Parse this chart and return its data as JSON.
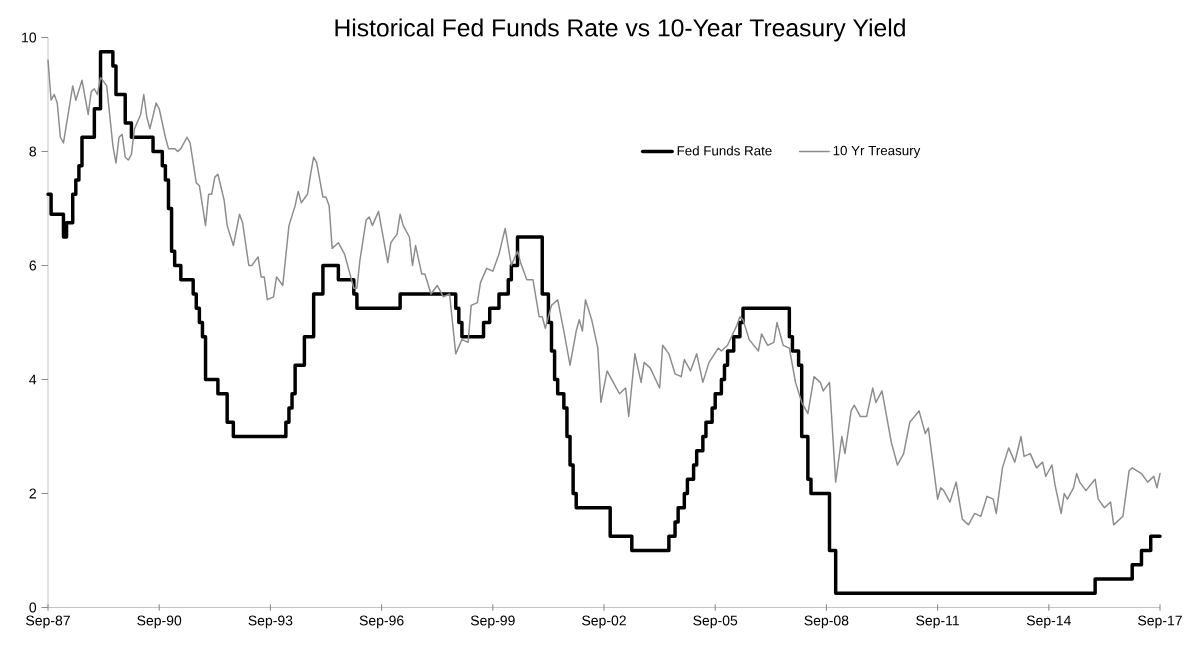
{
  "chart_data": {
    "type": "line",
    "title": "Historical Fed Funds Rate vs 10-Year Treasury Yield",
    "xlim": [
      "1987-09",
      "2017-09"
    ],
    "xticks": [
      {
        "value": "1987-09",
        "label": "Sep-87"
      },
      {
        "value": "1990-09",
        "label": "Sep-90"
      },
      {
        "value": "1993-09",
        "label": "Sep-93"
      },
      {
        "value": "1996-09",
        "label": "Sep-96"
      },
      {
        "value": "1999-09",
        "label": "Sep-99"
      },
      {
        "value": "2002-09",
        "label": "Sep-02"
      },
      {
        "value": "2005-09",
        "label": "Sep-05"
      },
      {
        "value": "2008-09",
        "label": "Sep-08"
      },
      {
        "value": "2011-09",
        "label": "Sep-11"
      },
      {
        "value": "2014-09",
        "label": "Sep-14"
      },
      {
        "value": "2017-09",
        "label": "Sep-17"
      }
    ],
    "ylim": [
      0,
      10
    ],
    "yticks": [
      0,
      2,
      4,
      6,
      8,
      10
    ],
    "legend": "top right",
    "series": [
      {
        "name": "Fed Funds Rate",
        "type": "step",
        "color": "#000000",
        "x": [
          "1987-09",
          "1987-10",
          "1988-02",
          "1988-03",
          "1988-05",
          "1988-06",
          "1988-07",
          "1988-08",
          "1988-12",
          "1989-02",
          "1989-06",
          "1989-07",
          "1989-10",
          "1989-12",
          "1990-07",
          "1990-10",
          "1990-11",
          "1990-12",
          "1991-01",
          "1991-02",
          "1991-04",
          "1991-08",
          "1991-09",
          "1991-10",
          "1991-11",
          "1991-12",
          "1992-04",
          "1992-07",
          "1992-09",
          "1994-02",
          "1994-03",
          "1994-04",
          "1994-05",
          "1994-08",
          "1994-11",
          "1995-02",
          "1995-07",
          "1995-12",
          "1996-01",
          "1997-03",
          "1998-09",
          "1998-10",
          "1998-11",
          "1999-06",
          "1999-08",
          "1999-11",
          "2000-02",
          "2000-03",
          "2000-05",
          "2001-01",
          "2001-03",
          "2001-04",
          "2001-05",
          "2001-06",
          "2001-08",
          "2001-09",
          "2001-10",
          "2001-11",
          "2001-12",
          "2002-11",
          "2003-06",
          "2004-06",
          "2004-08",
          "2004-09",
          "2004-11",
          "2004-12",
          "2005-02",
          "2005-03",
          "2005-05",
          "2005-06",
          "2005-08",
          "2005-09",
          "2005-11",
          "2005-12",
          "2006-01",
          "2006-03",
          "2006-05",
          "2006-06",
          "2007-09",
          "2007-10",
          "2007-12",
          "2008-01",
          "2008-03",
          "2008-04",
          "2008-10",
          "2008-12",
          "2015-12",
          "2016-12",
          "2017-03",
          "2017-06",
          "2017-09"
        ],
        "values": [
          7.25,
          6.9,
          6.5,
          6.75,
          7.25,
          7.5,
          7.75,
          8.25,
          8.75,
          9.75,
          9.5,
          9.0,
          8.5,
          8.25,
          8.0,
          7.75,
          7.5,
          7.0,
          6.25,
          6.0,
          5.75,
          5.5,
          5.25,
          5.0,
          4.75,
          4.0,
          3.75,
          3.25,
          3.0,
          3.25,
          3.5,
          3.75,
          4.25,
          4.75,
          5.5,
          6.0,
          5.75,
          5.5,
          5.25,
          5.5,
          5.25,
          5.0,
          4.75,
          5.0,
          5.25,
          5.5,
          5.75,
          6.0,
          6.5,
          5.5,
          5.0,
          4.5,
          4.0,
          3.75,
          3.5,
          3.0,
          2.5,
          2.0,
          1.75,
          1.25,
          1.0,
          1.25,
          1.5,
          1.75,
          2.0,
          2.25,
          2.5,
          2.75,
          3.0,
          3.25,
          3.5,
          3.75,
          4.0,
          4.25,
          4.5,
          4.75,
          5.0,
          5.25,
          4.75,
          4.5,
          4.25,
          3.0,
          2.25,
          2.0,
          1.0,
          0.25,
          0.5,
          0.75,
          1.0,
          1.25,
          1.25
        ]
      },
      {
        "name": "10 Yr Treasury",
        "color": "#8c8c8c",
        "x": [
          "1987-09",
          "1987-10",
          "1987-11",
          "1987-12",
          "1988-01",
          "1988-02",
          "1988-05",
          "1988-06",
          "1988-08",
          "1988-10",
          "1988-11",
          "1988-12",
          "1989-01",
          "1989-02",
          "1989-04",
          "1989-06",
          "1989-07",
          "1989-08",
          "1989-09",
          "1989-10",
          "1989-11",
          "1989-12",
          "1990-01",
          "1990-03",
          "1990-04",
          "1990-05",
          "1990-06",
          "1990-08",
          "1990-09",
          "1990-11",
          "1990-12",
          "1991-02",
          "1991-03",
          "1991-04",
          "1991-06",
          "1991-07",
          "1991-09",
          "1991-10",
          "1991-12",
          "1992-01",
          "1992-02",
          "1992-03",
          "1992-04",
          "1992-06",
          "1992-07",
          "1992-09",
          "1992-11",
          "1992-12",
          "1993-02",
          "1993-03",
          "1993-05",
          "1993-06",
          "1993-07",
          "1993-08",
          "1993-10",
          "1993-11",
          "1994-01",
          "1994-03",
          "1994-05",
          "1994-06",
          "1994-07",
          "1994-09",
          "1994-10",
          "1994-11",
          "1994-12",
          "1995-02",
          "1995-03",
          "1995-04",
          "1995-05",
          "1995-07",
          "1995-09",
          "1995-10",
          "1995-12",
          "1996-01",
          "1996-02",
          "1996-04",
          "1996-05",
          "1996-06",
          "1996-08",
          "1996-11",
          "1996-12",
          "1997-02",
          "1997-03",
          "1997-04",
          "1997-06",
          "1997-07",
          "1997-08",
          "1997-10",
          "1997-11",
          "1998-01",
          "1998-03",
          "1998-05",
          "1998-07",
          "1998-09",
          "1998-11",
          "1999-01",
          "1999-02",
          "1999-04",
          "1999-05",
          "1999-07",
          "1999-09",
          "1999-11",
          "2000-01",
          "2000-03",
          "2000-05",
          "2000-06",
          "2000-08",
          "2000-10",
          "2000-12",
          "2001-01",
          "2001-02",
          "2001-04",
          "2001-06",
          "2001-08",
          "2001-10",
          "2001-12",
          "2002-01",
          "2002-02",
          "2002-03",
          "2002-05",
          "2002-07",
          "2002-08",
          "2002-10",
          "2002-12",
          "2003-02",
          "2003-04",
          "2003-05",
          "2003-07",
          "2003-09",
          "2003-10",
          "2003-12",
          "2004-03",
          "2004-04",
          "2004-06",
          "2004-08",
          "2004-10",
          "2004-11",
          "2005-01",
          "2005-03",
          "2005-05",
          "2005-07",
          "2005-10",
          "2005-11",
          "2006-01",
          "2006-04",
          "2006-05",
          "2006-06",
          "2006-08",
          "2006-11",
          "2006-12",
          "2007-02",
          "2007-04",
          "2007-05",
          "2007-07",
          "2007-09",
          "2007-11",
          "2008-01",
          "2008-03",
          "2008-05",
          "2008-07",
          "2008-08",
          "2008-10",
          "2008-12",
          "2009-02",
          "2009-03",
          "2009-05",
          "2009-06",
          "2009-08",
          "2009-10",
          "2009-12",
          "2010-01",
          "2010-03",
          "2010-06",
          "2010-08",
          "2010-10",
          "2010-12",
          "2011-03",
          "2011-05",
          "2011-06",
          "2011-09",
          "2011-10",
          "2011-11",
          "2012-01",
          "2012-03",
          "2012-05",
          "2012-07",
          "2012-09",
          "2012-11",
          "2013-01",
          "2013-03",
          "2013-04",
          "2013-06",
          "2013-08",
          "2013-10",
          "2013-12",
          "2014-01",
          "2014-03",
          "2014-05",
          "2014-07",
          "2014-08",
          "2014-10",
          "2014-11",
          "2015-01",
          "2015-02",
          "2015-03",
          "2015-05",
          "2015-06",
          "2015-07",
          "2015-09",
          "2015-12",
          "2016-01",
          "2016-03",
          "2016-05",
          "2016-06",
          "2016-08",
          "2016-09",
          "2016-11",
          "2016-12",
          "2017-03",
          "2017-05",
          "2017-07",
          "2017-08",
          "2017-09"
        ],
        "values": [
          9.6,
          8.9,
          9.0,
          8.85,
          8.25,
          8.15,
          9.15,
          8.9,
          9.25,
          8.65,
          9.05,
          9.1,
          9.0,
          9.3,
          9.15,
          8.1,
          7.8,
          8.25,
          8.3,
          7.9,
          7.85,
          7.95,
          8.4,
          8.65,
          9.0,
          8.6,
          8.4,
          8.85,
          8.75,
          8.25,
          8.05,
          8.05,
          8.0,
          8.05,
          8.25,
          8.15,
          7.45,
          7.4,
          6.7,
          7.25,
          7.25,
          7.55,
          7.6,
          7.15,
          6.7,
          6.35,
          6.9,
          6.75,
          6.0,
          6.0,
          6.15,
          5.8,
          5.8,
          5.4,
          5.45,
          5.8,
          5.65,
          6.7,
          7.05,
          7.3,
          7.1,
          7.25,
          7.6,
          7.9,
          7.8,
          7.2,
          7.2,
          7.05,
          6.3,
          6.4,
          6.2,
          6.0,
          5.6,
          5.6,
          6.1,
          6.8,
          6.85,
          6.7,
          6.95,
          6.05,
          6.4,
          6.55,
          6.9,
          6.7,
          6.5,
          6.0,
          6.35,
          5.85,
          5.85,
          5.5,
          5.65,
          5.45,
          5.5,
          4.45,
          4.7,
          4.65,
          5.3,
          5.35,
          5.7,
          5.95,
          5.9,
          6.2,
          6.65,
          6.0,
          6.25,
          6.05,
          5.75,
          5.75,
          5.1,
          5.1,
          4.9,
          5.3,
          5.4,
          4.85,
          4.25,
          4.85,
          5.05,
          4.85,
          5.4,
          5.05,
          4.55,
          3.6,
          4.15,
          3.95,
          3.75,
          3.85,
          3.35,
          4.45,
          3.95,
          4.3,
          4.2,
          3.85,
          4.6,
          4.45,
          4.1,
          4.05,
          4.35,
          4.15,
          4.45,
          3.95,
          4.3,
          4.55,
          4.5,
          4.6,
          4.95,
          5.1,
          5.05,
          4.7,
          4.5,
          4.8,
          4.6,
          4.65,
          5.0,
          4.6,
          4.55,
          3.95,
          3.6,
          3.4,
          4.05,
          3.95,
          3.8,
          3.95,
          2.2,
          3.0,
          2.7,
          3.45,
          3.55,
          3.35,
          3.35,
          3.85,
          3.6,
          3.8,
          2.9,
          2.5,
          2.7,
          3.25,
          3.45,
          3.05,
          3.15,
          1.9,
          2.1,
          2.05,
          1.85,
          2.2,
          1.55,
          1.45,
          1.65,
          1.6,
          1.95,
          1.9,
          1.65,
          2.45,
          2.8,
          2.55,
          3.0,
          2.65,
          2.7,
          2.45,
          2.55,
          2.3,
          2.5,
          2.15,
          1.65,
          2.0,
          1.9,
          2.1,
          2.35,
          2.2,
          2.05,
          2.25,
          1.9,
          1.75,
          1.85,
          1.45,
          1.55,
          1.6,
          2.4,
          2.45,
          2.35,
          2.2,
          2.3,
          2.1,
          2.35
        ]
      }
    ]
  }
}
